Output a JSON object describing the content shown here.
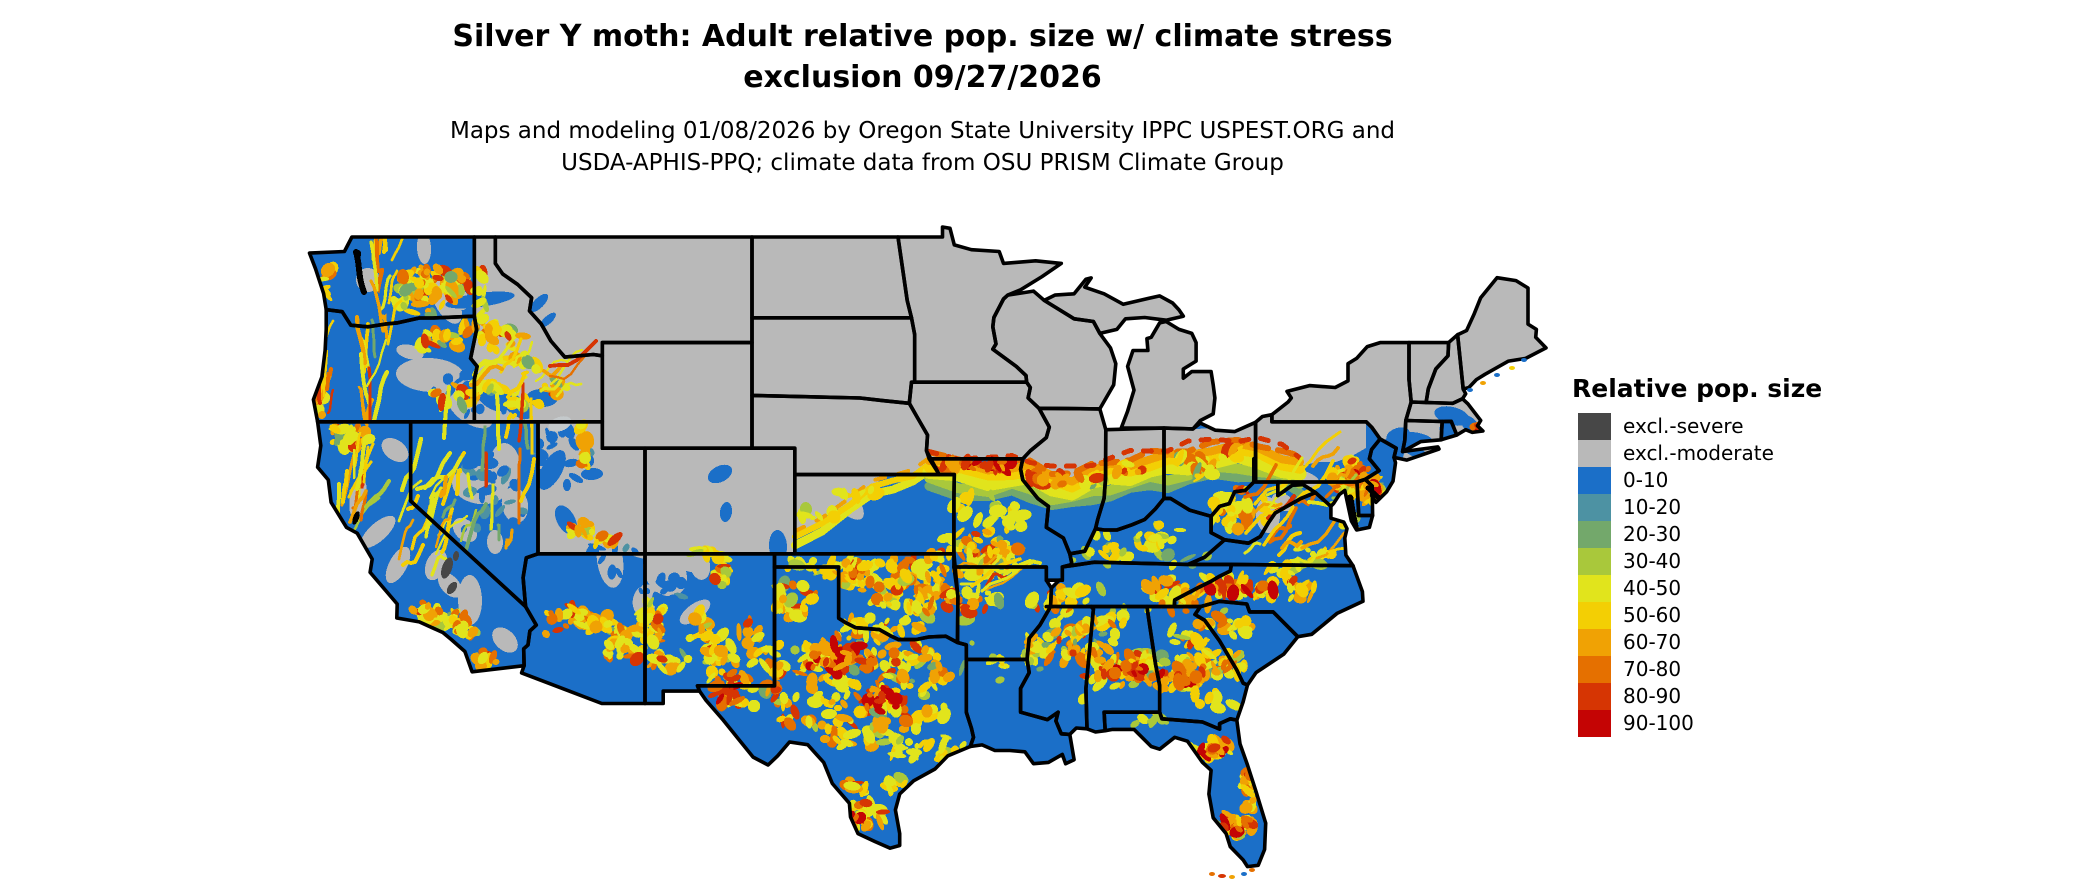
{
  "header": {
    "title_line1": "Silver Y moth: Adult relative pop. size w/ climate stress",
    "title_line2": "exclusion 09/27/2026",
    "subtitle_line1": "Maps and modeling 01/08/2026 by Oregon State University IPPC USPEST.ORG and",
    "subtitle_line2": "USDA-APHIS-PPQ; climate data from OSU PRISM Climate Group"
  },
  "legend": {
    "title": "Relative pop. size",
    "entries": [
      {
        "label": "excl.-severe",
        "color": "#474747"
      },
      {
        "label": "excl.-moderate",
        "color": "#b9b9b9"
      },
      {
        "label": "0-10",
        "color": "#1b6fc8"
      },
      {
        "label": "10-20",
        "color": "#4d92a3"
      },
      {
        "label": "20-30",
        "color": "#73a86b"
      },
      {
        "label": "30-40",
        "color": "#a9c83b"
      },
      {
        "label": "40-50",
        "color": "#e1e41c"
      },
      {
        "label": "50-60",
        "color": "#f3cf04"
      },
      {
        "label": "60-70",
        "color": "#f0a204"
      },
      {
        "label": "70-80",
        "color": "#e57000"
      },
      {
        "label": "80-90",
        "color": "#d63503"
      },
      {
        "label": "90-100",
        "color": "#c40404"
      }
    ]
  },
  "map": {
    "colors": {
      "background": "#ffffff",
      "state_border": "#000000",
      "water_ink": "#000000",
      "lake_fill": "#c4c9cb"
    }
  }
}
